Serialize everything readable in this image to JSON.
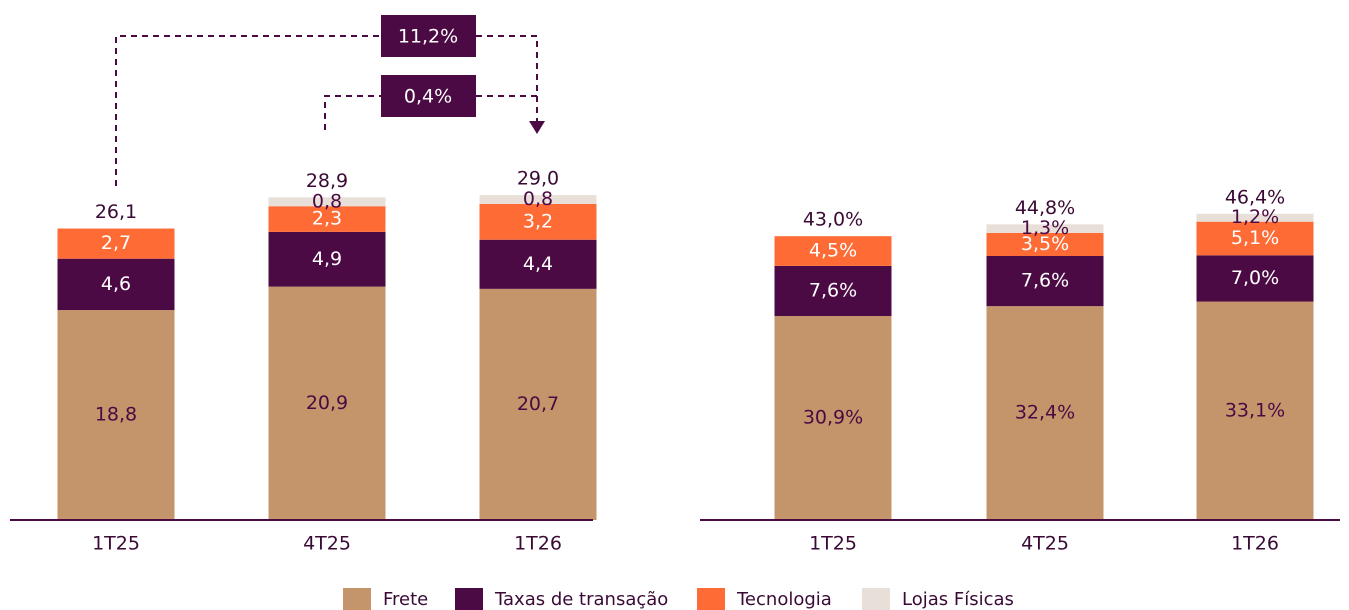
{
  "chart_data": [
    {
      "type": "bar",
      "stacked": true,
      "categories": [
        "1T25",
        "4T25",
        "1T26"
      ],
      "series": [
        {
          "name": "Frete",
          "color": "#c4956a",
          "values": [
            18.8,
            20.9,
            20.7
          ],
          "value_labels": [
            "18,8",
            "20,9",
            "20,7"
          ]
        },
        {
          "name": "Taxas de transação",
          "color": "#4b0a44",
          "values": [
            4.6,
            4.9,
            4.4
          ],
          "value_labels": [
            "4,6",
            "4,9",
            "4,4"
          ]
        },
        {
          "name": "Tecnologia",
          "color": "#ff6b35",
          "values": [
            2.7,
            2.3,
            3.2
          ],
          "value_labels": [
            "2,7",
            "2,3",
            "3,2"
          ]
        },
        {
          "name": "Lojas Físicas",
          "color": "#e8e0d8",
          "values": [
            null,
            0.8,
            0.8
          ],
          "value_labels": [
            null,
            "0,8",
            "0,8"
          ]
        }
      ],
      "totals": {
        "values": [
          26.1,
          28.9,
          29.0
        ],
        "value_labels": [
          "26,1",
          "28,9",
          "29,0"
        ]
      },
      "annotations": [
        "11,2%",
        "0,4%"
      ],
      "ylim": [
        0,
        30
      ]
    },
    {
      "type": "bar",
      "stacked": true,
      "categories": [
        "1T25",
        "4T25",
        "1T26"
      ],
      "series": [
        {
          "name": "Frete",
          "color": "#c4956a",
          "values": [
            30.9,
            32.4,
            33.1
          ],
          "value_labels": [
            "30,9%",
            "32,4%",
            "33,1%"
          ]
        },
        {
          "name": "Taxas de transação",
          "color": "#4b0a44",
          "values": [
            7.6,
            7.6,
            7.0
          ],
          "value_labels": [
            "7,6%",
            "7,6%",
            "7,0%"
          ]
        },
        {
          "name": "Tecnologia",
          "color": "#ff6b35",
          "values": [
            4.5,
            3.5,
            5.1
          ],
          "value_labels": [
            "4,5%",
            "3,5%",
            "5,1%"
          ]
        },
        {
          "name": "Lojas Físicas",
          "color": "#e8e0d8",
          "values": [
            null,
            1.3,
            1.2
          ],
          "value_labels": [
            null,
            "1,3%",
            "1,2%"
          ]
        }
      ],
      "totals": {
        "values": [
          43.0,
          44.8,
          46.4
        ],
        "value_labels": [
          "43,0%",
          "44,8%",
          "46,4%"
        ]
      },
      "ylim": [
        0,
        50
      ]
    }
  ]
}
